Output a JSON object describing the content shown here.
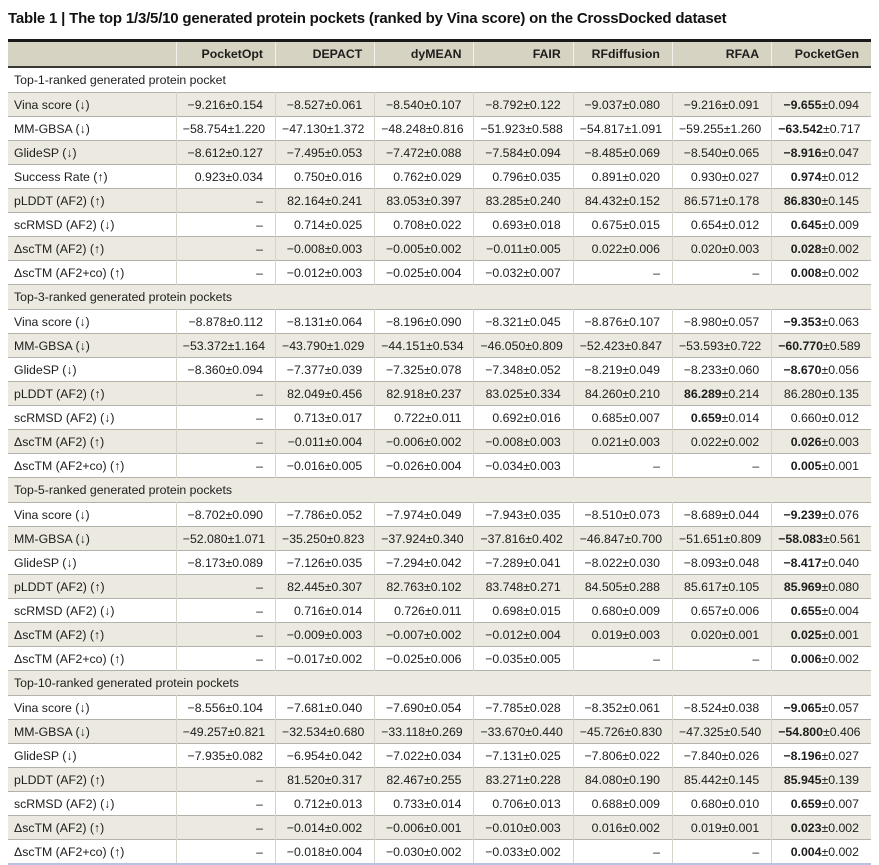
{
  "title": {
    "full": "Table 1 | The top 1/3/5/10 generated protein pockets (ranked by Vina score) on the CrossDocked dataset"
  },
  "colors": {
    "header_bg": "#d7d3c3",
    "stripe_bg": "#ebe9e0",
    "top_rule": "#1a1a1a",
    "bottom_rule": "#b7c1e3",
    "row_rule": "#b2b1aa",
    "text": "#1d1d1b"
  },
  "columns": [
    "PocketOpt",
    "DEPACT",
    "dyMEAN",
    "FAIR",
    "RFdiffusion",
    "RFAA",
    "PocketGen"
  ],
  "chart_data": {
    "type": "table",
    "title": "Table 1 | The top 1/3/5/10 generated protein pockets (ranked by Vina score) on the CrossDocked dataset",
    "columns": [
      "PocketOpt",
      "DEPACT",
      "dyMEAN",
      "FAIR",
      "RFdiffusion",
      "RFAA",
      "PocketGen"
    ]
  },
  "sections": [
    {
      "header": "Top-1-ranked generated protein pocket",
      "rows": [
        {
          "metric": "Vina score (↓)",
          "bold": 6,
          "values": [
            "−9.216±0.154",
            "−8.527±0.061",
            "−8.540±0.107",
            "−8.792±0.122",
            "−9.037±0.080",
            "−9.216±0.091",
            "−9.655±0.094"
          ]
        },
        {
          "metric": "MM-GBSA (↓)",
          "bold": 6,
          "values": [
            "−58.754±1.220",
            "−47.130±1.372",
            "−48.248±0.816",
            "−51.923±0.588",
            "−54.817±1.091",
            "−59.255±1.260",
            "−63.542±0.717"
          ]
        },
        {
          "metric": "GlideSP (↓)",
          "bold": 6,
          "values": [
            "−8.612±0.127",
            "−7.495±0.053",
            "−7.472±0.088",
            "−7.584±0.094",
            "−8.485±0.069",
            "−8.540±0.065",
            "−8.916±0.047"
          ]
        },
        {
          "metric": "Success Rate (↑)",
          "bold": 6,
          "values": [
            "0.923±0.034",
            "0.750±0.016",
            "0.762±0.029",
            "0.796±0.035",
            "0.891±0.020",
            "0.930±0.027",
            "0.974±0.012"
          ]
        },
        {
          "metric": "pLDDT (AF2) (↑)",
          "bold": 6,
          "values": [
            "–",
            "82.164±0.241",
            "83.053±0.397",
            "83.285±0.240",
            "84.432±0.152",
            "86.571±0.178",
            "86.830±0.145"
          ]
        },
        {
          "metric": "scRMSD (AF2) (↓)",
          "bold": 6,
          "values": [
            "–",
            "0.714±0.025",
            "0.708±0.022",
            "0.693±0.018",
            "0.675±0.015",
            "0.654±0.012",
            "0.645±0.009"
          ]
        },
        {
          "metric": "ΔscTM (AF2) (↑)",
          "bold": 6,
          "values": [
            "–",
            "−0.008±0.003",
            "−0.005±0.002",
            "−0.011±0.005",
            "0.022±0.006",
            "0.020±0.003",
            "0.028±0.002"
          ]
        },
        {
          "metric": "ΔscTM (AF2+co) (↑)",
          "bold": 6,
          "values": [
            "–",
            "−0.012±0.003",
            "−0.025±0.004",
            "−0.032±0.007",
            "–",
            "–",
            "0.008±0.002"
          ]
        }
      ]
    },
    {
      "header": "Top-3-ranked generated protein pockets",
      "rows": [
        {
          "metric": "Vina score (↓)",
          "bold": 6,
          "values": [
            "−8.878±0.112",
            "−8.131±0.064",
            "−8.196±0.090",
            "−8.321±0.045",
            "−8.876±0.107",
            "−8.980±0.057",
            "−9.353±0.063"
          ]
        },
        {
          "metric": "MM-GBSA (↓)",
          "bold": 6,
          "values": [
            "−53.372±1.164",
            "−43.790±1.029",
            "−44.151±0.534",
            "−46.050±0.809",
            "−52.423±0.847",
            "−53.593±0.722",
            "−60.770±0.589"
          ]
        },
        {
          "metric": "GlideSP (↓)",
          "bold": 6,
          "values": [
            "−8.360±0.094",
            "−7.377±0.039",
            "−7.325±0.078",
            "−7.348±0.052",
            "−8.219±0.049",
            "−8.233±0.060",
            "−8.670±0.056"
          ]
        },
        {
          "metric": "pLDDT (AF2) (↑)",
          "bold": 5,
          "values": [
            "–",
            "82.049±0.456",
            "82.918±0.237",
            "83.025±0.334",
            "84.260±0.210",
            "86.289±0.214",
            "86.280±0.135"
          ]
        },
        {
          "metric": "scRMSD (AF2) (↓)",
          "bold": 5,
          "values": [
            "–",
            "0.713±0.017",
            "0.722±0.011",
            "0.692±0.016",
            "0.685±0.007",
            "0.659±0.014",
            "0.660±0.012"
          ]
        },
        {
          "metric": "ΔscTM (AF2) (↑)",
          "bold": 6,
          "values": [
            "–",
            "−0.011±0.004",
            "−0.006±0.002",
            "−0.008±0.003",
            "0.021±0.003",
            "0.022±0.002",
            "0.026±0.003"
          ]
        },
        {
          "metric": "ΔscTM (AF2+co) (↑)",
          "bold": 6,
          "values": [
            "–",
            "−0.016±0.005",
            "−0.026±0.004",
            "−0.034±0.003",
            "–",
            "–",
            "0.005±0.001"
          ]
        }
      ]
    },
    {
      "header": "Top-5-ranked generated protein pockets",
      "rows": [
        {
          "metric": "Vina score (↓)",
          "bold": 6,
          "values": [
            "−8.702±0.090",
            "−7.786±0.052",
            "−7.974±0.049",
            "−7.943±0.035",
            "−8.510±0.073",
            "−8.689±0.044",
            "−9.239±0.076"
          ]
        },
        {
          "metric": "MM-GBSA (↓)",
          "bold": 6,
          "values": [
            "−52.080±1.071",
            "−35.250±0.823",
            "−37.924±0.340",
            "−37.816±0.402",
            "−46.847±0.700",
            "−51.651±0.809",
            "−58.083±0.561"
          ]
        },
        {
          "metric": "GlideSP (↓)",
          "bold": 6,
          "values": [
            "−8.173±0.089",
            "−7.126±0.035",
            "−7.294±0.042",
            "−7.289±0.041",
            "−8.022±0.030",
            "−8.093±0.048",
            "−8.417±0.040"
          ]
        },
        {
          "metric": "pLDDT (AF2) (↑)",
          "bold": 6,
          "values": [
            "–",
            "82.445±0.307",
            "82.763±0.102",
            "83.748±0.271",
            "84.505±0.288",
            "85.617±0.105",
            "85.969±0.080"
          ]
        },
        {
          "metric": "scRMSD (AF2) (↓)",
          "bold": 6,
          "values": [
            "–",
            "0.716±0.014",
            "0.726±0.011",
            "0.698±0.015",
            "0.680±0.009",
            "0.657±0.006",
            "0.655±0.004"
          ]
        },
        {
          "metric": "ΔscTM (AF2) (↑)",
          "bold": 6,
          "values": [
            "–",
            "−0.009±0.003",
            "−0.007±0.002",
            "−0.012±0.004",
            "0.019±0.003",
            "0.020±0.001",
            "0.025±0.001"
          ]
        },
        {
          "metric": "ΔscTM (AF2+co) (↑)",
          "bold": 6,
          "values": [
            "–",
            "−0.017±0.002",
            "−0.025±0.006",
            "−0.035±0.005",
            "–",
            "–",
            "0.006±0.002"
          ]
        }
      ]
    },
    {
      "header": "Top-10-ranked generated protein pockets",
      "rows": [
        {
          "metric": "Vina score (↓)",
          "bold": 6,
          "values": [
            "−8.556±0.104",
            "−7.681±0.040",
            "−7.690±0.054",
            "−7.785±0.028",
            "−8.352±0.061",
            "−8.524±0.038",
            "−9.065±0.057"
          ]
        },
        {
          "metric": "MM-GBSA (↓)",
          "bold": 6,
          "values": [
            "−49.257±0.821",
            "−32.534±0.680",
            "−33.118±0.269",
            "−33.670±0.440",
            "−45.726±0.830",
            "−47.325±0.540",
            "−54.800±0.406"
          ]
        },
        {
          "metric": "GlideSP (↓)",
          "bold": 6,
          "values": [
            "−7.935±0.082",
            "−6.954±0.042",
            "−7.022±0.034",
            "−7.131±0.025",
            "−7.806±0.022",
            "−7.840±0.026",
            "−8.196±0.027"
          ]
        },
        {
          "metric": "pLDDT (AF2) (↑)",
          "bold": 6,
          "values": [
            "–",
            "81.520±0.317",
            "82.467±0.255",
            "83.271±0.228",
            "84.080±0.190",
            "85.442±0.145",
            "85.945±0.139"
          ]
        },
        {
          "metric": "scRMSD (AF2) (↓)",
          "bold": 6,
          "values": [
            "–",
            "0.712±0.013",
            "0.733±0.014",
            "0.706±0.013",
            "0.688±0.009",
            "0.680±0.010",
            "0.659±0.007"
          ]
        },
        {
          "metric": "ΔscTM (AF2) (↑)",
          "bold": 6,
          "values": [
            "–",
            "−0.014±0.002",
            "−0.006±0.001",
            "−0.010±0.003",
            "0.016±0.002",
            "0.019±0.001",
            "0.023±0.002"
          ]
        },
        {
          "metric": "ΔscTM (AF2+co) (↑)",
          "bold": 6,
          "values": [
            "–",
            "−0.018±0.004",
            "−0.030±0.002",
            "−0.033±0.002",
            "–",
            "–",
            "0.004±0.002"
          ]
        }
      ]
    }
  ]
}
